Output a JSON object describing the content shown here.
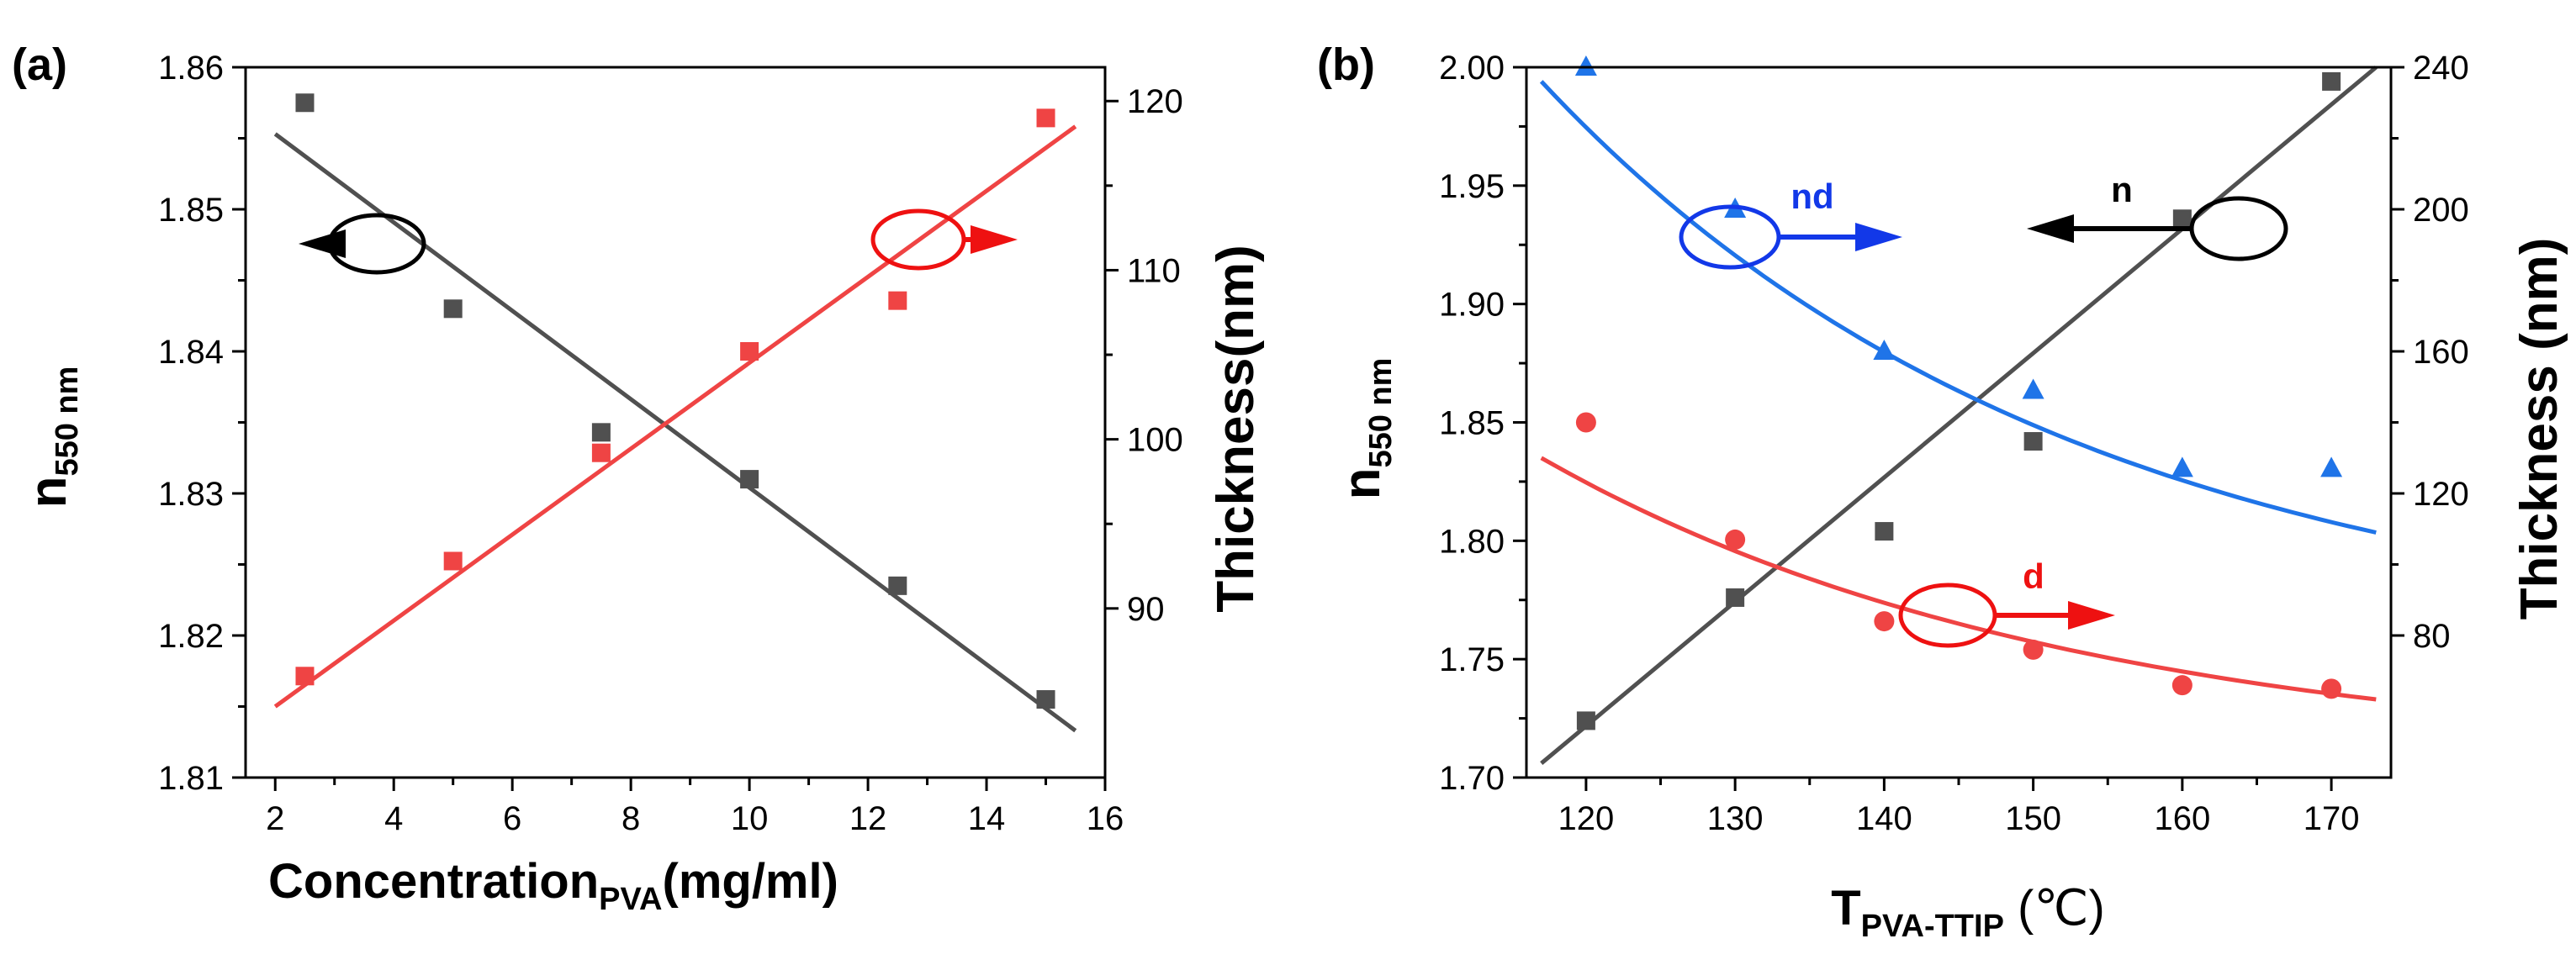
{
  "colors": {
    "black_series": "#505050",
    "red_series": "#ef4444",
    "blue_series": "#1f74e8",
    "arrow_blue": "#1238e8",
    "arrow_red": "#ee1111"
  },
  "chart_data": [
    {
      "type": "scatter",
      "panel_label": "(a)",
      "xlabel": {
        "main": "Concentration",
        "sub": "PVA",
        "tail": "(mg/ml)"
      },
      "ylabel_left": {
        "main": "n",
        "sub": "550 nm"
      },
      "ylabel_right": "Thickness(nm)",
      "xlim": [
        1.5,
        16
      ],
      "ylim_left": [
        1.81,
        1.86
      ],
      "ylim_right": [
        80,
        122
      ],
      "x_ticks": [
        2,
        4,
        6,
        8,
        10,
        12,
        14,
        16
      ],
      "x_tick_labels": [
        "2",
        "4",
        "6",
        "8",
        "10",
        "12",
        "14",
        "16"
      ],
      "y_left_ticks": [
        1.81,
        1.82,
        1.83,
        1.84,
        1.85,
        1.86
      ],
      "y_left_tick_labels": [
        "1.81",
        "1.82",
        "1.83",
        "1.84",
        "1.85",
        "1.86"
      ],
      "y_right_ticks": [
        90,
        100,
        110,
        120
      ],
      "y_right_tick_labels": [
        "90",
        "100",
        "110",
        "120"
      ],
      "series": [
        {
          "name": "n",
          "axis": "left",
          "marker": "square",
          "color": "#505050",
          "x": [
            2.5,
            5,
            7.5,
            10,
            12.5,
            15
          ],
          "y": [
            1.8575,
            1.843,
            1.8343,
            1.831,
            1.8235,
            1.8155
          ],
          "fit": {
            "type": "linear",
            "x": [
              2,
              15.5
            ],
            "y": [
              1.8553,
              1.8133
            ]
          }
        },
        {
          "name": "thickness",
          "axis": "right",
          "marker": "square",
          "color": "#ef4444",
          "x": [
            2.5,
            5,
            7.5,
            10,
            12.5,
            15
          ],
          "y": [
            86,
            92.8,
            99.2,
            105.2,
            108.2,
            119
          ],
          "fit": {
            "type": "linear",
            "x": [
              2,
              15.5
            ],
            "y": [
              84.2,
              118.5
            ]
          }
        }
      ],
      "annotations": [
        {
          "type": "ellipse-arrow",
          "direction": "left",
          "color": "#000000",
          "label": ""
        },
        {
          "type": "ellipse-arrow",
          "direction": "right",
          "color": "#ee1111",
          "label": ""
        }
      ]
    },
    {
      "type": "scatter",
      "panel_label": "(b)",
      "xlabel": {
        "main": "T",
        "sub": "PVA-TTIP",
        "tail": " (℃)"
      },
      "ylabel_left": {
        "main": "n",
        "sub": "550 nm"
      },
      "ylabel_right": "Thickness (nm)",
      "xlim": [
        116,
        174
      ],
      "ylim_left": [
        1.7,
        2.0
      ],
      "ylim_right": [
        40,
        240
      ],
      "x_ticks": [
        120,
        130,
        140,
        150,
        160,
        170
      ],
      "x_tick_labels": [
        "120",
        "130",
        "140",
        "150",
        "160",
        "170"
      ],
      "y_left_ticks": [
        1.7,
        1.75,
        1.8,
        1.85,
        1.9,
        1.95,
        2.0
      ],
      "y_left_tick_labels": [
        "1.70",
        "1.75",
        "1.80",
        "1.85",
        "1.90",
        "1.95",
        "2.00"
      ],
      "y_right_ticks": [
        80,
        120,
        160,
        200,
        240
      ],
      "y_right_tick_labels": [
        "80",
        "120",
        "160",
        "200",
        "240"
      ],
      "series": [
        {
          "name": "n",
          "axis": "left",
          "marker": "square",
          "color": "#505050",
          "x": [
            120,
            130,
            140,
            150,
            160,
            170
          ],
          "y": [
            1.724,
            1.776,
            1.804,
            1.842,
            1.936,
            1.994
          ],
          "fit": {
            "type": "linear",
            "x": [
              117,
              173
            ],
            "y": [
              1.706,
              2.0
            ]
          }
        },
        {
          "name": "nd",
          "axis": "right",
          "marker": "triangle",
          "color": "#1f74e8",
          "x": [
            120,
            130,
            140,
            150,
            160,
            170
          ],
          "y": [
            240,
            200,
            160,
            149,
            127,
            127
          ],
          "fit": {
            "type": "decay",
            "x0": 117,
            "x1": 173,
            "y0": 236,
            "y1": 109
          }
        },
        {
          "name": "d",
          "axis": "right",
          "marker": "circle",
          "color": "#ef4444",
          "x": [
            120,
            130,
            140,
            150,
            160,
            170
          ],
          "y": [
            140,
            107,
            84,
            76,
            66,
            65
          ],
          "fit": {
            "type": "decay",
            "x0": 117,
            "x1": 173,
            "y0": 130,
            "y1": 62
          }
        }
      ],
      "annotations": [
        {
          "type": "ellipse-arrow",
          "direction": "right",
          "color": "#1238e8",
          "label": "nd"
        },
        {
          "type": "ellipse-arrow",
          "direction": "left",
          "color": "#000000",
          "label": "n"
        },
        {
          "type": "ellipse-arrow",
          "direction": "right",
          "color": "#ee1111",
          "label": "d"
        }
      ]
    }
  ]
}
